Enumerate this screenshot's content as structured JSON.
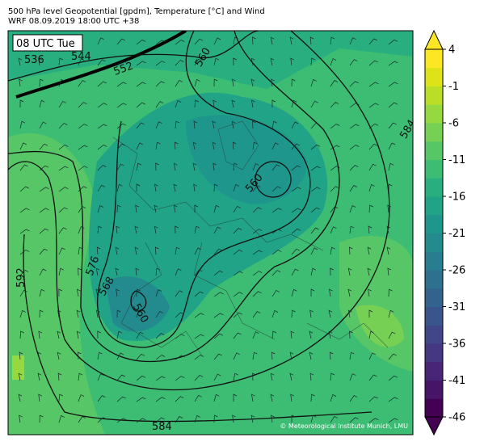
{
  "header": {
    "title": "500 hPa level Geopotential [gpdm], Temperature [°C] and Wind",
    "subtitle": "WRF 08.09.2019 18:00 UTC +38"
  },
  "map": {
    "time_label": "08 UTC Tue",
    "contour_labels": [
      "536",
      "544",
      "552",
      "560",
      "584",
      "560",
      "576",
      "568",
      "560",
      "592",
      "584"
    ],
    "credit": "© Meteorological Institute Munich, LMU"
  },
  "colorbar": {
    "ticks": [
      4,
      -1,
      -6,
      -11,
      -16,
      -21,
      -26,
      -31,
      -36,
      -41,
      -46
    ],
    "colors": [
      "#440154",
      "#481467",
      "#482576",
      "#453781",
      "#404688",
      "#39558c",
      "#33638d",
      "#2d718e",
      "#287d8e",
      "#238a8d",
      "#1f968b",
      "#20a386",
      "#29af7f",
      "#3dbc74",
      "#56c667",
      "#75d054",
      "#95d840",
      "#bade28",
      "#dde318",
      "#fde725"
    ]
  }
}
